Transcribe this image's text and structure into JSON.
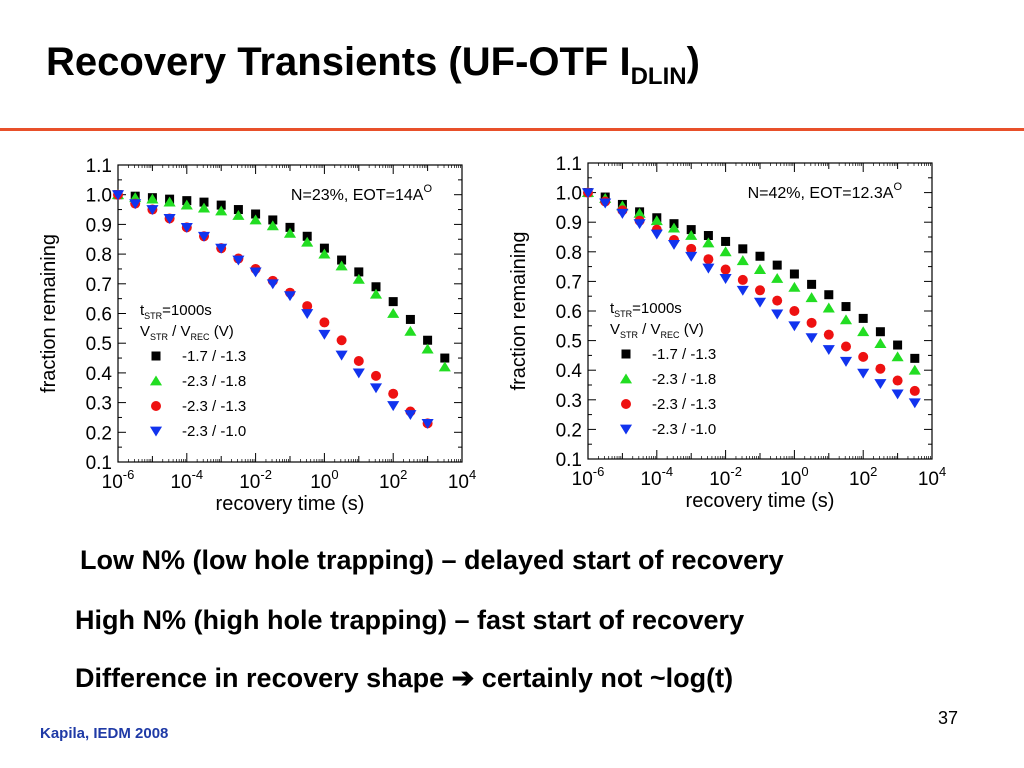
{
  "slide": {
    "title_main": "Recovery Transients (UF-OTF I",
    "title_sub": "DLIN",
    "title_end": ")",
    "rule_color": "#e8502a",
    "bullets": [
      {
        "text": "Low N% (low hole trapping) – delayed start of recovery"
      },
      {
        "pre": "Difference in recovery shape ",
        "arrow": "➔",
        "post": " certainly not ~log(t)"
      },
      {
        "text": "High N% (high hole trapping) – fast start of recovery"
      }
    ],
    "page_number": "37",
    "citation": "Kapila, IEDM 2008",
    "citation_color": "#1f3aa6"
  },
  "chart_data": [
    {
      "type": "scatter",
      "xscale": "log",
      "xlim": [
        1e-06,
        10000.0
      ],
      "ylim": [
        0.1,
        1.1
      ],
      "xticks": [
        {
          "base": "10",
          "exp": "-6"
        },
        {
          "base": "10",
          "exp": "-4"
        },
        {
          "base": "10",
          "exp": "-2"
        },
        {
          "base": "10",
          "exp": "0"
        },
        {
          "base": "10",
          "exp": "2"
        },
        {
          "base": "10",
          "exp": "4"
        }
      ],
      "yticks": [
        "1.1",
        "1.0",
        "0.9",
        "0.8",
        "0.7",
        "0.6",
        "0.5",
        "0.4",
        "0.3",
        "0.2",
        "0.1"
      ],
      "xlabel": "recovery time (s)",
      "ylabel": "fraction remaining",
      "annotation": {
        "text": "N=23%, EOT=14A",
        "sup": "O"
      },
      "legend": {
        "line1": {
          "t": "t",
          "t_sub": "STR",
          "rest": "=1000s"
        },
        "line2": {
          "v1": "V",
          "v1_sub": "STR",
          "slash": " / V",
          "v2_sub": "REC",
          "unit": " (V)"
        }
      },
      "series": [
        {
          "name": "-1.7 / -1.3",
          "marker": "square",
          "color": "#000000",
          "x": [
            -6,
            -5.5,
            -5,
            -4.5,
            -4,
            -3.5,
            -3,
            -2.5,
            -2,
            -1.5,
            -1,
            -0.5,
            0,
            0.5,
            1,
            1.5,
            2,
            2.5,
            3,
            3.5
          ],
          "y": [
            1.0,
            0.995,
            0.99,
            0.985,
            0.98,
            0.975,
            0.965,
            0.95,
            0.935,
            0.915,
            0.89,
            0.86,
            0.82,
            0.78,
            0.74,
            0.69,
            0.64,
            0.58,
            0.51,
            0.45
          ]
        },
        {
          "name": "-2.3 / -1.8",
          "marker": "triangle-up",
          "color": "#22dd22",
          "x": [
            -6,
            -5.5,
            -5,
            -4.5,
            -4,
            -3.5,
            -3,
            -2.5,
            -2,
            -1.5,
            -1,
            -0.5,
            0,
            0.5,
            1,
            1.5,
            2,
            2.5,
            3,
            3.5
          ],
          "y": [
            1.0,
            0.99,
            0.985,
            0.975,
            0.965,
            0.955,
            0.945,
            0.93,
            0.915,
            0.895,
            0.87,
            0.84,
            0.8,
            0.76,
            0.715,
            0.665,
            0.6,
            0.54,
            0.48,
            0.42
          ]
        },
        {
          "name": "-2.3 / -1.3",
          "marker": "circle",
          "color": "#ee1111",
          "x": [
            -6,
            -5.5,
            -5,
            -4.5,
            -4,
            -3.5,
            -3,
            -2.5,
            -2,
            -1.5,
            -1,
            -0.5,
            0,
            0.5,
            1,
            1.5,
            2,
            2.5,
            3
          ],
          "y": [
            1.0,
            0.97,
            0.95,
            0.92,
            0.89,
            0.86,
            0.82,
            0.785,
            0.75,
            0.71,
            0.67,
            0.625,
            0.57,
            0.51,
            0.44,
            0.39,
            0.33,
            0.27,
            0.23
          ]
        },
        {
          "name": "-2.3 / -1.0",
          "marker": "triangle-down",
          "color": "#1133ee",
          "x": [
            -6,
            -5.5,
            -5,
            -4.5,
            -4,
            -3.5,
            -3,
            -2.5,
            -2,
            -1.5,
            -1,
            -0.5,
            0,
            0.5,
            1,
            1.5,
            2,
            2.5,
            3
          ],
          "y": [
            1.0,
            0.97,
            0.95,
            0.92,
            0.89,
            0.86,
            0.82,
            0.78,
            0.74,
            0.7,
            0.66,
            0.6,
            0.53,
            0.46,
            0.4,
            0.35,
            0.29,
            0.26,
            0.23
          ]
        }
      ]
    },
    {
      "type": "scatter",
      "xscale": "log",
      "xlim": [
        1e-06,
        10000.0
      ],
      "ylim": [
        0.1,
        1.1
      ],
      "xticks": [
        {
          "base": "10",
          "exp": "-6"
        },
        {
          "base": "10",
          "exp": "-4"
        },
        {
          "base": "10",
          "exp": "-2"
        },
        {
          "base": "10",
          "exp": "0"
        },
        {
          "base": "10",
          "exp": "2"
        },
        {
          "base": "10",
          "exp": "4"
        }
      ],
      "yticks": [
        "1.1",
        "1.0",
        "0.9",
        "0.8",
        "0.7",
        "0.6",
        "0.5",
        "0.4",
        "0.3",
        "0.2",
        "0.1"
      ],
      "xlabel": "recovery time (s)",
      "ylabel": "fraction remaining",
      "annotation": {
        "text": "N=42%, EOT=12.3A",
        "sup": "O"
      },
      "legend": {
        "line1": {
          "t": "t",
          "t_sub": "STR",
          "rest": "=1000s"
        },
        "line2": {
          "v1": "V",
          "v1_sub": "STR",
          "slash": " / V",
          "v2_sub": "REC",
          "unit": " (V)"
        }
      },
      "series": [
        {
          "name": "-1.7 / -1.3",
          "marker": "square",
          "color": "#000000",
          "x": [
            -6,
            -5.5,
            -5,
            -4.5,
            -4,
            -3.5,
            -3,
            -2.5,
            -2,
            -1.5,
            -1,
            -0.5,
            0,
            0.5,
            1,
            1.5,
            2,
            2.5,
            3,
            3.5
          ],
          "y": [
            1.0,
            0.985,
            0.96,
            0.935,
            0.915,
            0.895,
            0.875,
            0.855,
            0.835,
            0.81,
            0.785,
            0.755,
            0.725,
            0.69,
            0.655,
            0.615,
            0.575,
            0.53,
            0.485,
            0.44
          ]
        },
        {
          "name": "-2.3 / -1.8",
          "marker": "triangle-up",
          "color": "#22dd22",
          "x": [
            -6,
            -5.5,
            -5,
            -4.5,
            -4,
            -3.5,
            -3,
            -2.5,
            -2,
            -1.5,
            -1,
            -0.5,
            0,
            0.5,
            1,
            1.5,
            2,
            2.5,
            3,
            3.5
          ],
          "y": [
            1.0,
            0.98,
            0.955,
            0.93,
            0.905,
            0.88,
            0.855,
            0.83,
            0.8,
            0.77,
            0.74,
            0.71,
            0.68,
            0.645,
            0.61,
            0.57,
            0.53,
            0.49,
            0.445,
            0.4
          ]
        },
        {
          "name": "-2.3 / -1.3",
          "marker": "circle",
          "color": "#ee1111",
          "x": [
            -6,
            -5.5,
            -5,
            -4.5,
            -4,
            -3.5,
            -3,
            -2.5,
            -2,
            -1.5,
            -1,
            -0.5,
            0,
            0.5,
            1,
            1.5,
            2,
            2.5,
            3,
            3.5
          ],
          "y": [
            1.0,
            0.97,
            0.94,
            0.905,
            0.875,
            0.84,
            0.81,
            0.775,
            0.74,
            0.705,
            0.67,
            0.635,
            0.6,
            0.56,
            0.52,
            0.48,
            0.445,
            0.405,
            0.365,
            0.33
          ]
        },
        {
          "name": "-2.3 / -1.0",
          "marker": "triangle-down",
          "color": "#1133ee",
          "x": [
            -6,
            -5.5,
            -5,
            -4.5,
            -4,
            -3.5,
            -3,
            -2.5,
            -2,
            -1.5,
            -1,
            -0.5,
            0,
            0.5,
            1,
            1.5,
            2,
            2.5,
            3,
            3.5
          ],
          "y": [
            1.0,
            0.965,
            0.93,
            0.895,
            0.86,
            0.825,
            0.785,
            0.745,
            0.71,
            0.67,
            0.63,
            0.59,
            0.55,
            0.51,
            0.47,
            0.43,
            0.39,
            0.355,
            0.32,
            0.29
          ]
        }
      ]
    }
  ]
}
